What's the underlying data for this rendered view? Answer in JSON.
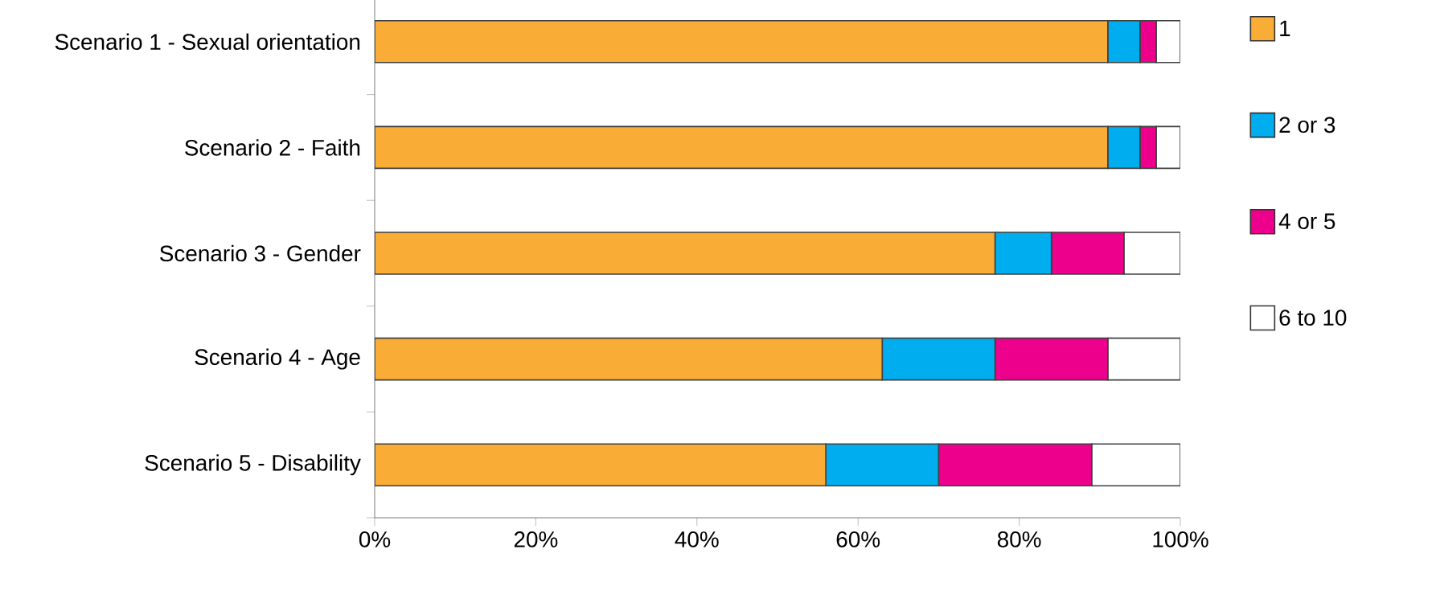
{
  "chart_data": {
    "type": "bar",
    "orientation": "horizontal",
    "stacked": true,
    "categories": [
      "Scenario 1 - Sexual orientation",
      "Scenario 2 - Faith",
      "Scenario 3 - Gender",
      "Scenario 4 - Age",
      "Scenario 5 - Disability"
    ],
    "series": [
      {
        "name": "1",
        "color": "#f9ac36",
        "values": [
          91,
          91,
          77,
          63,
          56
        ]
      },
      {
        "name": "2 or 3",
        "color": "#00aeef",
        "values": [
          4,
          4,
          7,
          14,
          14
        ]
      },
      {
        "name": "4 or 5",
        "color": "#ec008c",
        "values": [
          2,
          2,
          9,
          14,
          19
        ]
      },
      {
        "name": "6 to 10",
        "color": "#ffffff",
        "values": [
          3,
          3,
          7,
          9,
          11
        ]
      }
    ],
    "xlim": [
      0,
      100
    ],
    "xticks": [
      {
        "value": 0,
        "label": "0%"
      },
      {
        "value": 20,
        "label": "20%"
      },
      {
        "value": 40,
        "label": "40%"
      },
      {
        "value": 60,
        "label": "60%"
      },
      {
        "value": 80,
        "label": "80%"
      },
      {
        "value": 100,
        "label": "100%"
      }
    ],
    "legend": "right",
    "grid": false
  }
}
